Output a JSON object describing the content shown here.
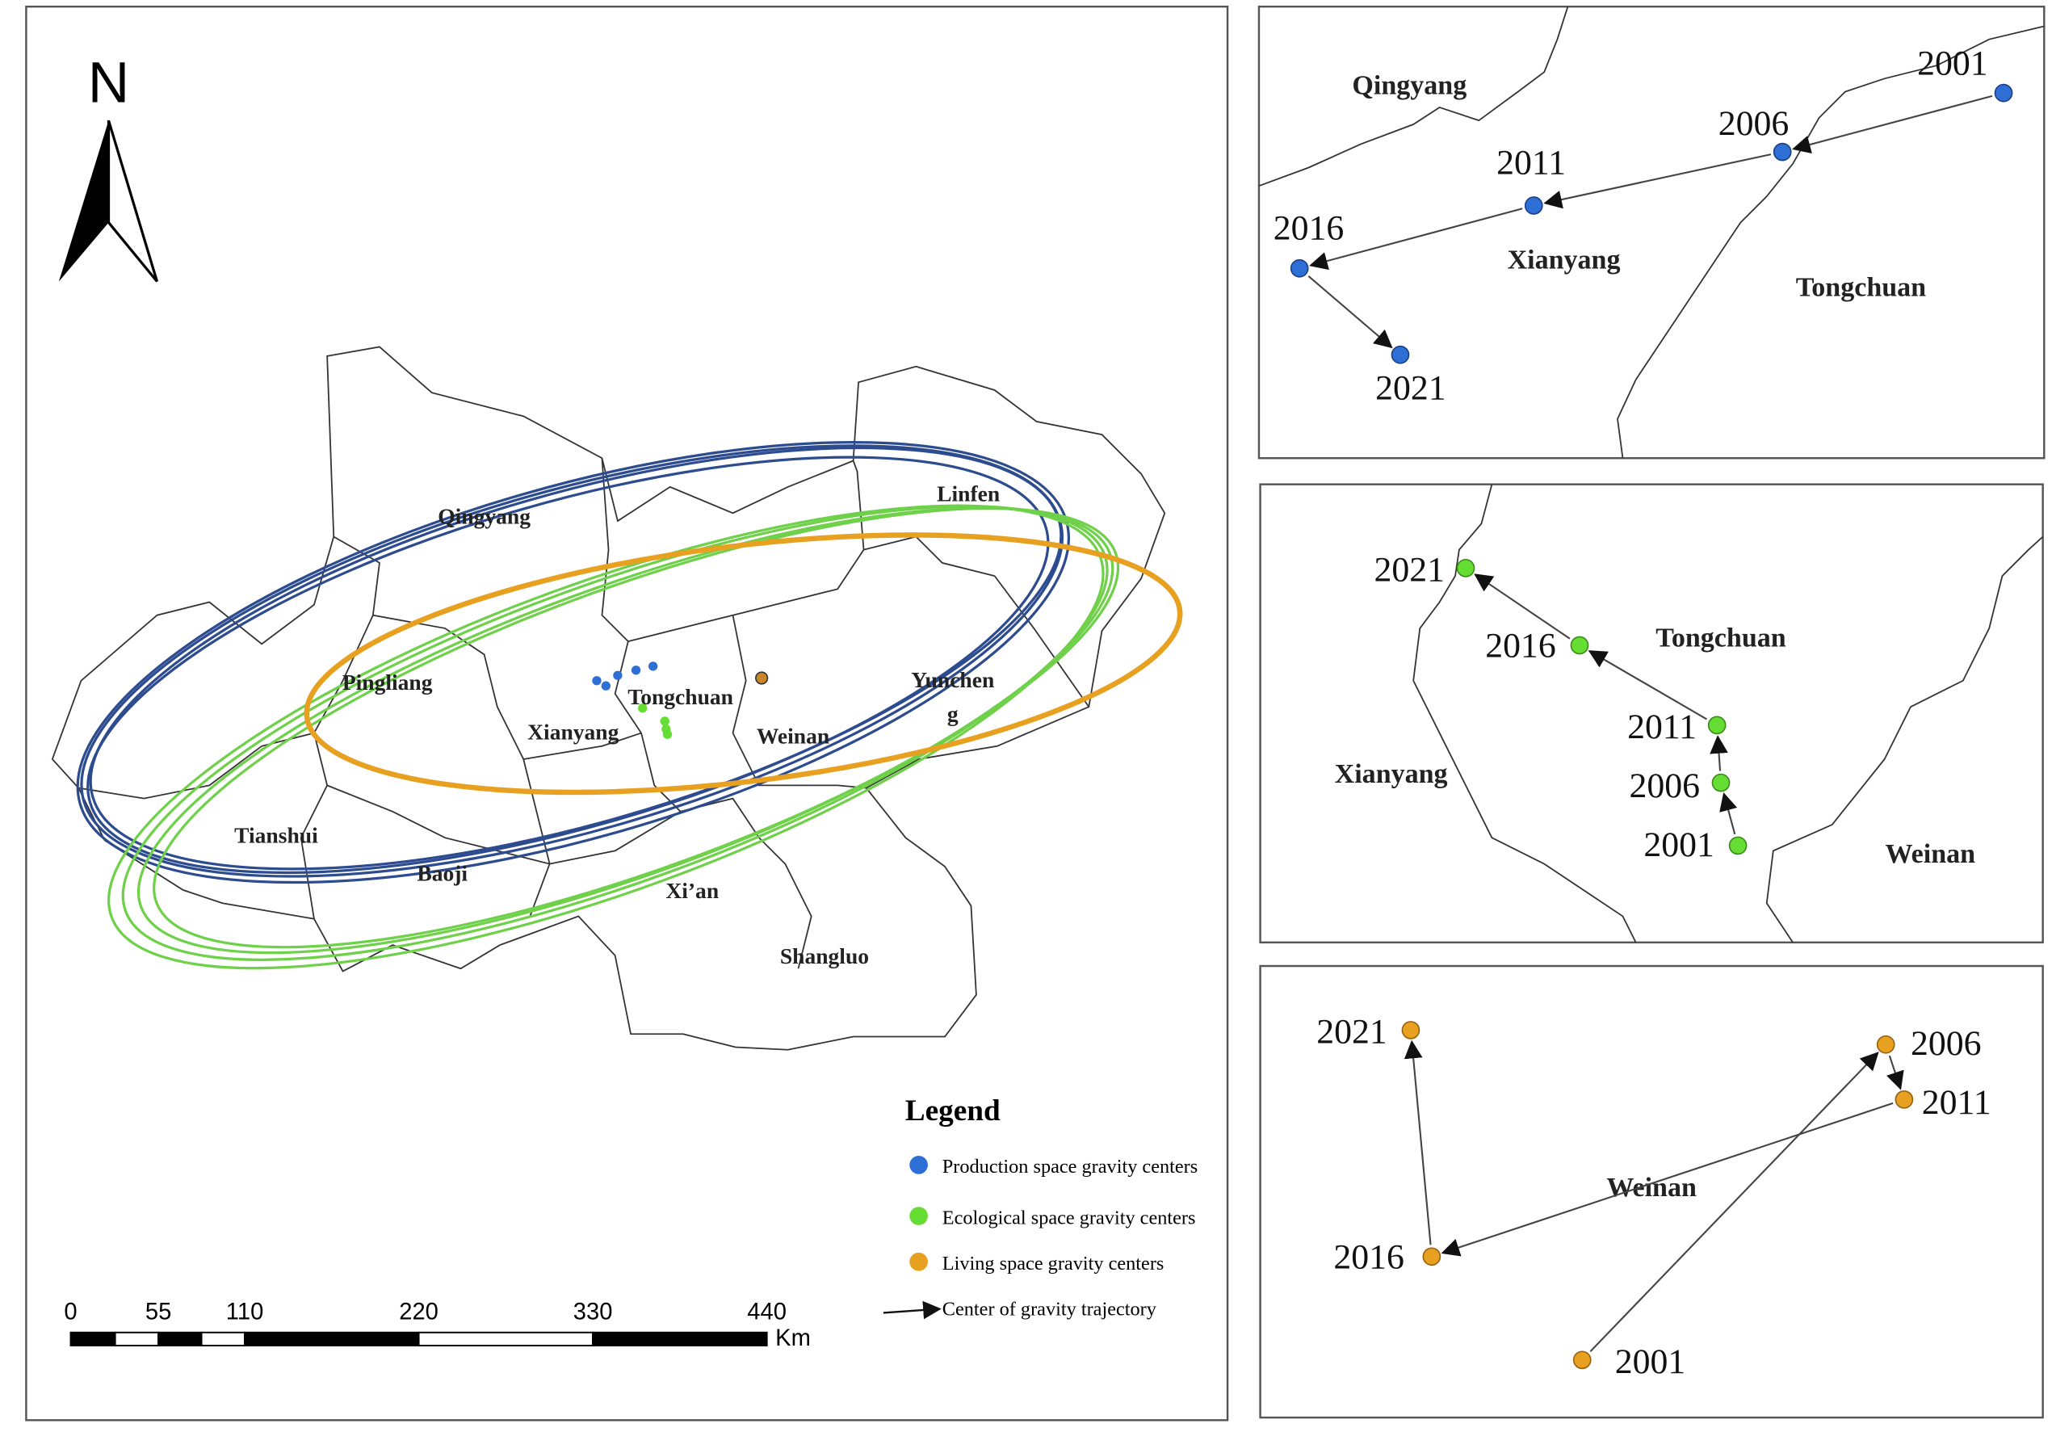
{
  "north_label": "N",
  "main_map": {
    "labels": [
      "Qingyang",
      "Linfen",
      "Pingliang",
      "Tongchuan",
      "Yunchen",
      "g",
      "Xianyang",
      "Weinan",
      "Tianshui",
      "Baoji",
      "Xi’an",
      "Shangluo"
    ]
  },
  "legend": {
    "title": "Legend",
    "items": [
      "Production space gravity centers",
      "Ecological space gravity centers",
      "Living space gravity centers",
      "Center of gravity trajectory"
    ]
  },
  "scale_bar": {
    "ticks": [
      "0",
      "55",
      "110",
      "220",
      "330",
      "440"
    ],
    "unit": "Km"
  },
  "insets": [
    {
      "regions": [
        "Qingyang",
        "Xianyang",
        "Tongchuan"
      ],
      "points": [
        "2001",
        "2006",
        "2011",
        "2016",
        "2021"
      ]
    },
    {
      "regions": [
        "Tongchuan",
        "Xianyang",
        "Weinan"
      ],
      "points": [
        "2001",
        "2006",
        "2011",
        "2016",
        "2021"
      ]
    },
    {
      "regions": [
        "Weinan"
      ],
      "points": [
        "2001",
        "2006",
        "2011",
        "2016",
        "2021"
      ]
    }
  ]
}
